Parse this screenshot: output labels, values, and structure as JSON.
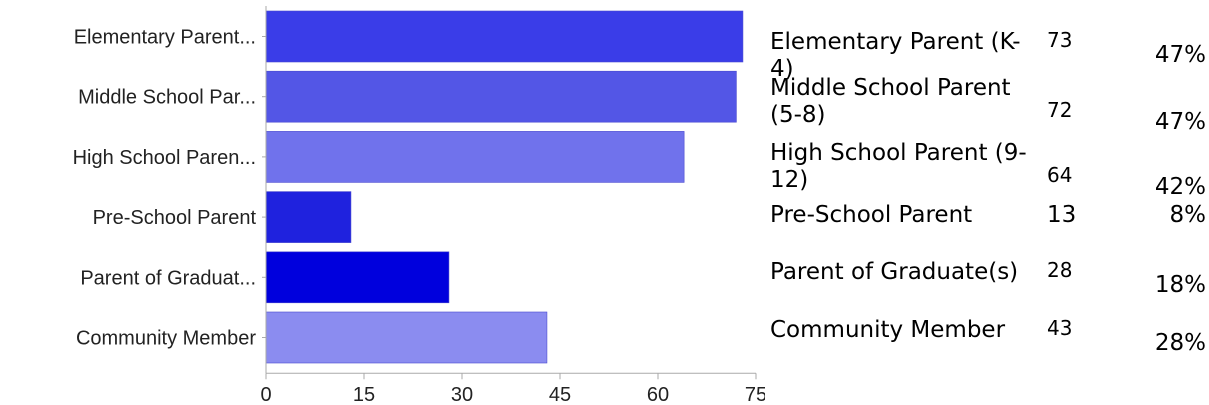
{
  "chart_data": {
    "type": "bar",
    "orientation": "horizontal",
    "categories": [
      "Elementary Parent...",
      "Middle School Par...",
      "High School Paren...",
      "Pre-School Parent",
      "Parent of Graduat...",
      "Community Member"
    ],
    "values": [
      73,
      72,
      64,
      13,
      28,
      43
    ],
    "bar_colors": [
      "#3a3de8",
      "#5356e6",
      "#7072ec",
      "#1f22de",
      "#0000dd",
      "#8b8cf0"
    ],
    "xlim": [
      0,
      75
    ],
    "xticks": [
      "0",
      "15",
      "30",
      "45",
      "60",
      "75"
    ],
    "grid": false,
    "legend": "none"
  },
  "summary": [
    {
      "label": "Elementary Parent (K-4)",
      "count": "73",
      "percent": "47%"
    },
    {
      "label": "Middle School Parent (5-8)",
      "count": "72",
      "percent": "47%"
    },
    {
      "label": "High School Parent (9-12)",
      "count": "64",
      "percent": "42%"
    },
    {
      "label": "Pre-School Parent",
      "count": "13",
      "percent": "8%"
    },
    {
      "label": "Parent of Graduate(s)",
      "count": "28",
      "percent": "18%"
    },
    {
      "label": "Community Member",
      "count": "43",
      "percent": "28%"
    }
  ]
}
